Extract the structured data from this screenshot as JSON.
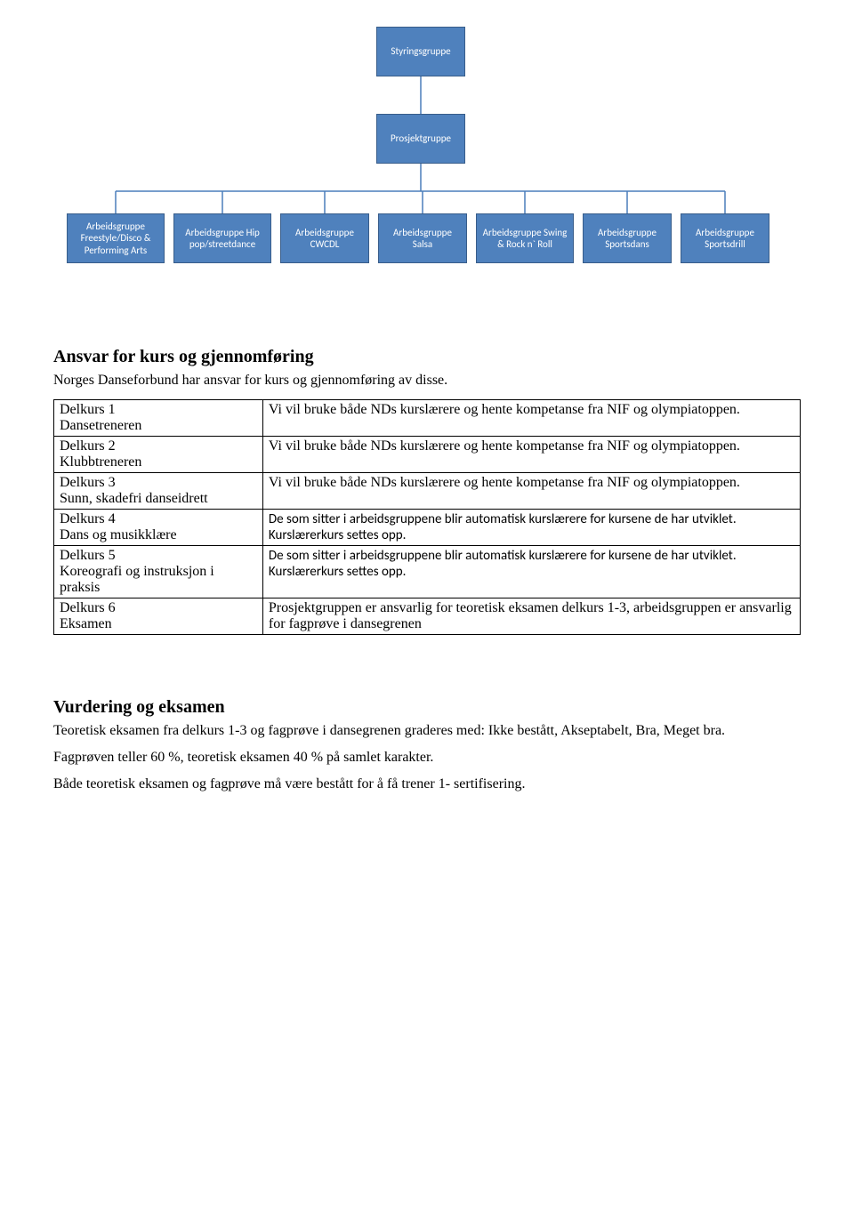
{
  "org": {
    "top1": "Styringsgruppe",
    "top2": "Prosjektgruppe",
    "leaves": [
      "Arbeidsgruppe Freestyle/Disco & Performing Arts",
      "Arbeidsgruppe Hip pop/streetdance",
      "Arbeidsgruppe CWCDL",
      "Arbeidsgruppe Salsa",
      "Arbeidsgruppe Swing & Rock n` Roll",
      "Arbeidsgruppe Sportsdans",
      "Arbeidsgruppe Sportsdrill"
    ],
    "node_color": "#4f81bd",
    "node_border": "#385d8a",
    "line_color": "#4a7ebb"
  },
  "section1": {
    "heading": "Ansvar for kurs og gjennomføring",
    "intro": "Norges Danseforbund har ansvar for kurs og gjennomføring av disse."
  },
  "table": {
    "rows": [
      {
        "left": "Delkurs 1\nDansetreneren",
        "right": "Vi vil bruke både NDs kurslærere og hente kompetanse fra NIF og olympiatoppen.",
        "right_calibri": false
      },
      {
        "left": "Delkurs 2\nKlubbtreneren",
        "right": "Vi vil bruke både NDs kurslærere og hente kompetanse fra NIF og olympiatoppen.",
        "right_calibri": false
      },
      {
        "left": "Delkurs 3\nSunn, skadefri danseidrett",
        "right": "Vi vil bruke både NDs kurslærere og hente kompetanse fra NIF og olympiatoppen.",
        "right_calibri": false
      },
      {
        "left": "Delkurs 4\nDans og musikklære",
        "right": "De som sitter i arbeidsgruppene blir automatisk kurslærere for kursene de har utviklet. Kurslærerkurs settes opp.",
        "right_calibri": true
      },
      {
        "left": "Delkurs 5\nKoreografi og instruksjon i praksis",
        "right": "De som sitter i arbeidsgruppene blir automatisk kurslærere for kursene de har utviklet. Kurslærerkurs settes opp.",
        "right_calibri": true
      },
      {
        "left": "Delkurs 6\nEksamen",
        "right": "Prosjektgruppen er ansvarlig for teoretisk eksamen delkurs 1-3, arbeidsgruppen er ansvarlig for fagprøve i dansegrenen",
        "right_calibri": false
      }
    ]
  },
  "section2": {
    "heading": "Vurdering og eksamen",
    "p1": "Teoretisk eksamen fra delkurs 1-3 og fagprøve i dansegrenen graderes med: Ikke bestått, Akseptabelt, Bra, Meget bra.",
    "p2": "Fagprøven teller 60 %, teoretisk eksamen 40 % på samlet karakter.",
    "p3": "Både teoretisk eksamen og fagprøve må være bestått for å få trener 1- sertifisering."
  }
}
